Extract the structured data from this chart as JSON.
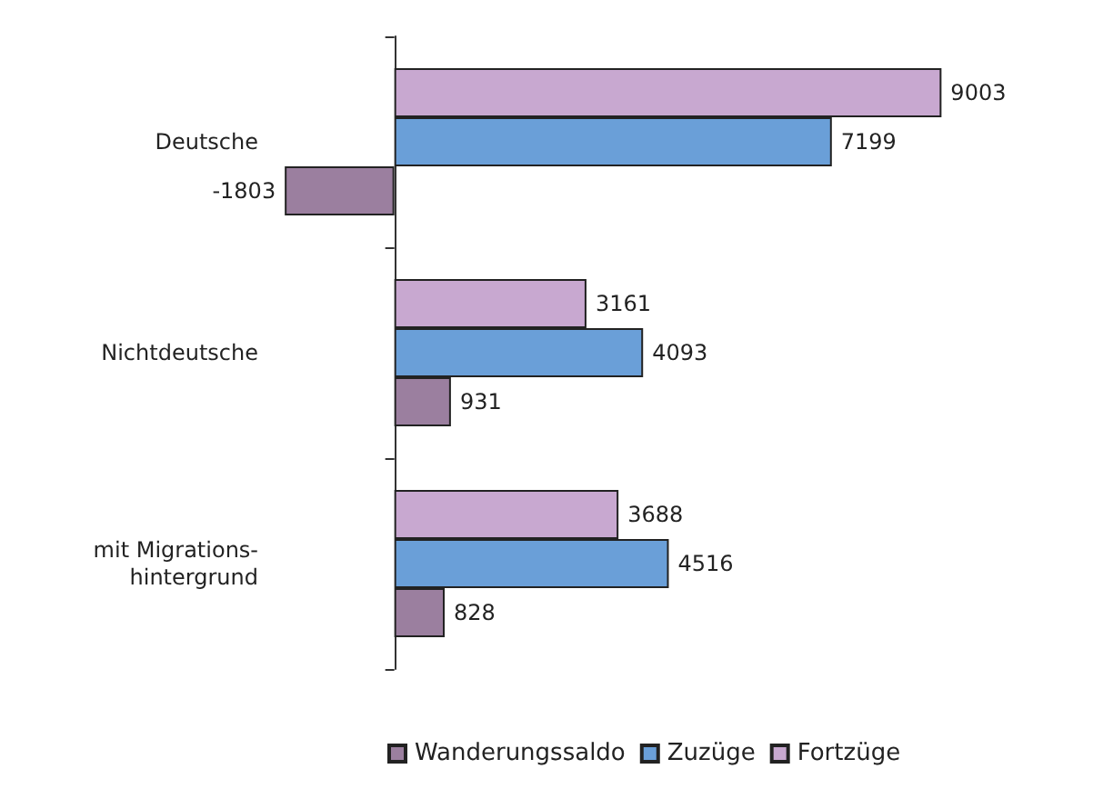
{
  "chart_data": {
    "type": "bar",
    "orientation": "horizontal",
    "categories": [
      "Deutsche",
      "Nichtdeutsche",
      "mit Migrations-\nhintergrund"
    ],
    "series": [
      {
        "name": "Wanderungssaldo",
        "color": "#9b7f9f",
        "values": [
          -1803,
          931,
          828
        ]
      },
      {
        "name": "Zuzüge",
        "color": "#6a9fd8",
        "values": [
          7199,
          4093,
          4516
        ]
      },
      {
        "name": "Fortzüge",
        "color": "#c8a8d0",
        "values": [
          9003,
          3161,
          3688
        ]
      }
    ],
    "data_labels": true,
    "legend": "bottom"
  }
}
